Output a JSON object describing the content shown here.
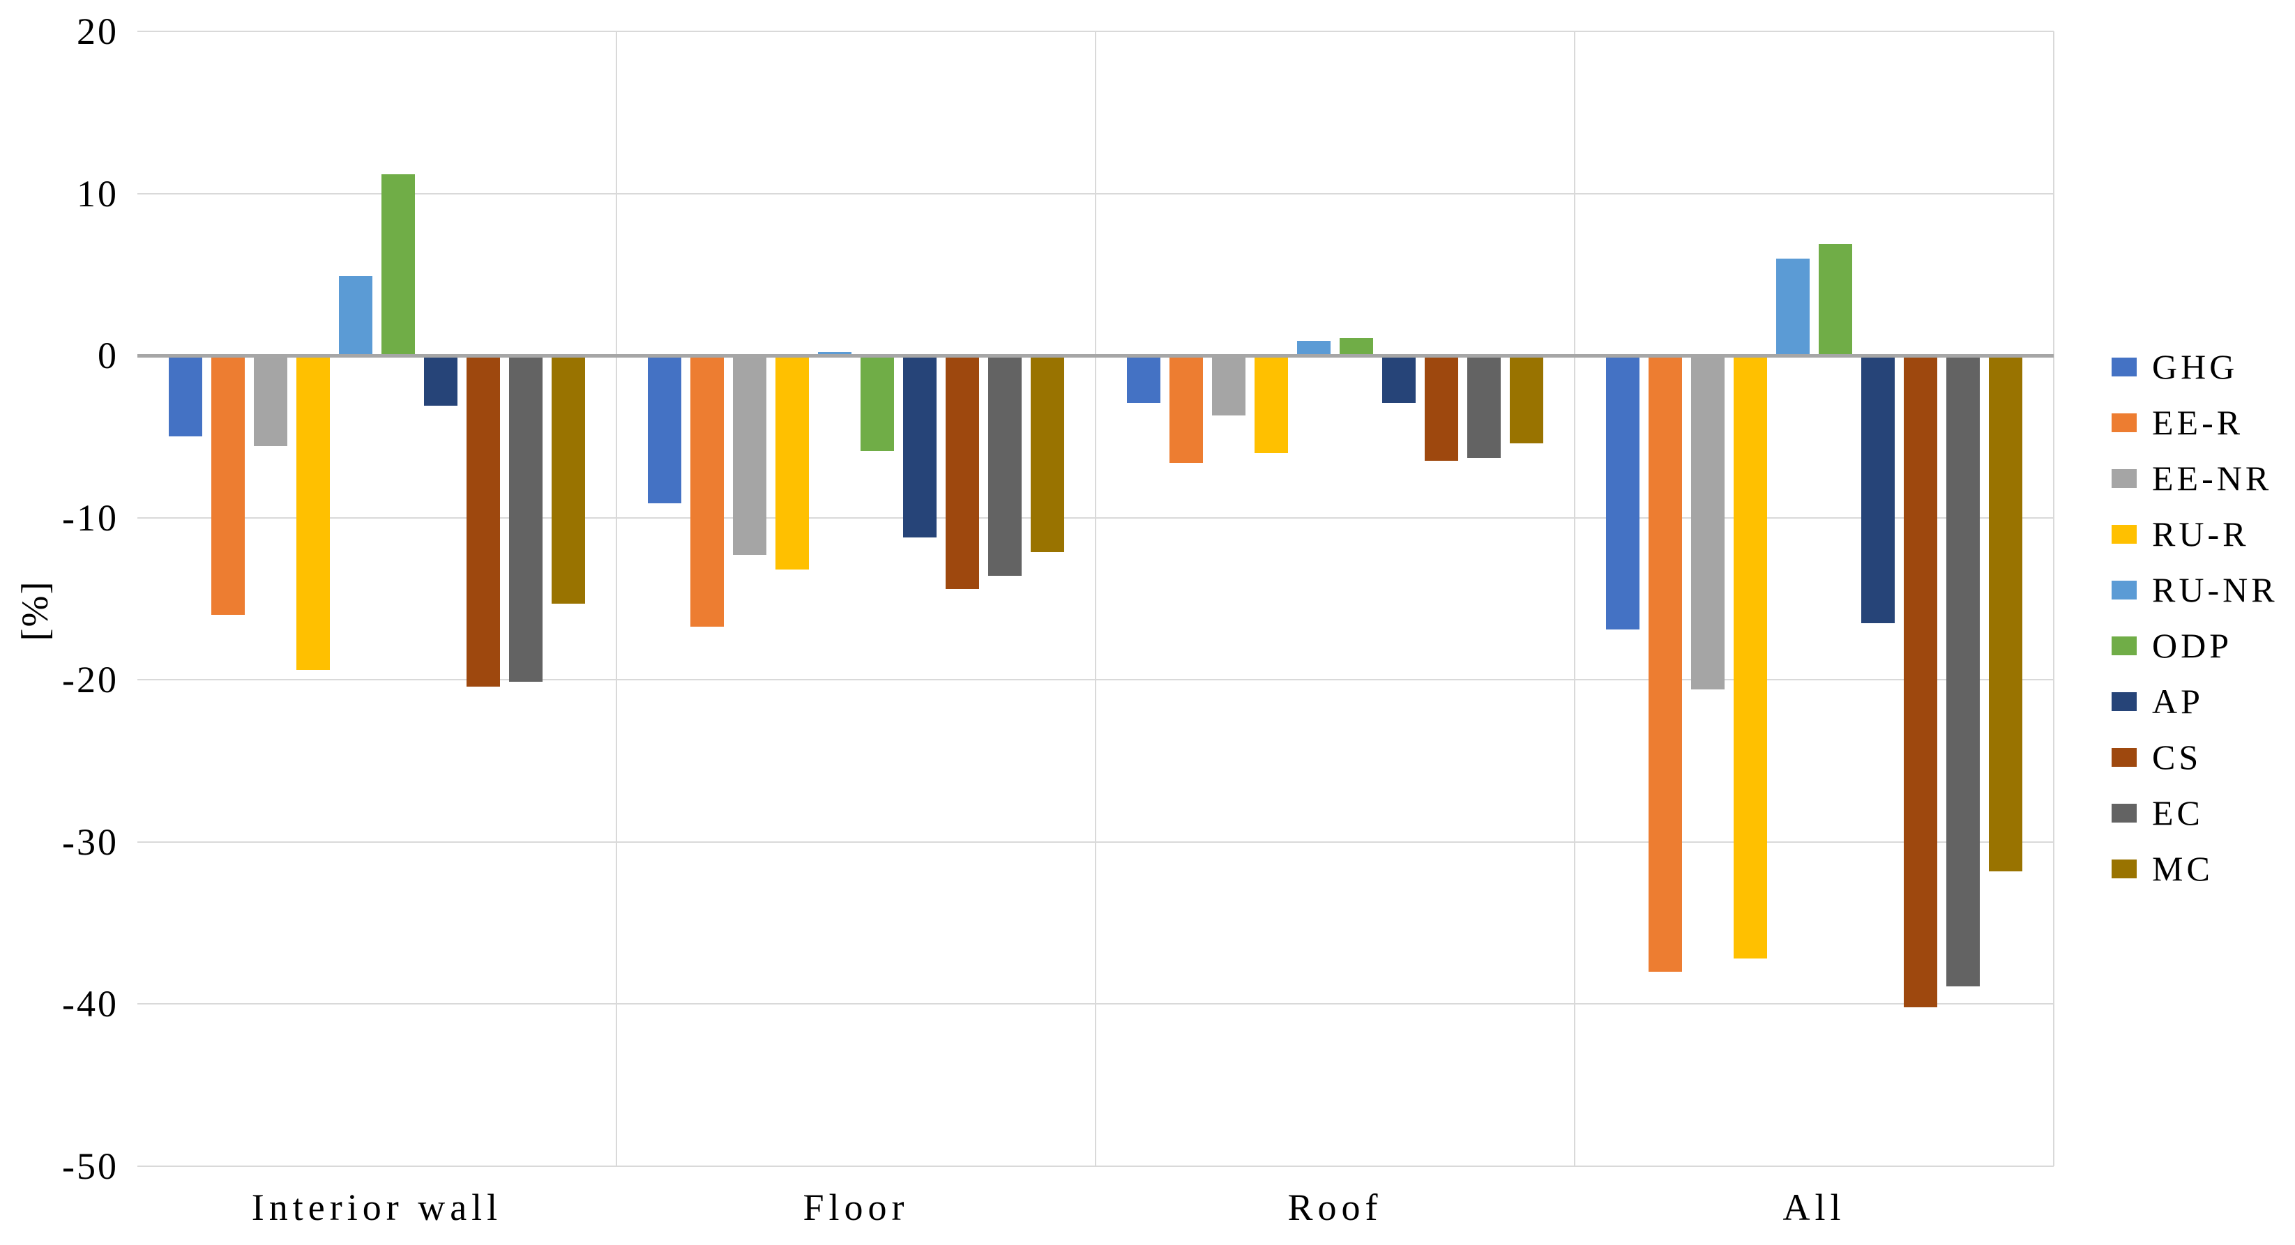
{
  "chart_data": {
    "type": "bar",
    "title": "",
    "ylabel": "[%]",
    "xlabel": "",
    "ylim": [
      -50,
      20
    ],
    "ytick_step": 10,
    "ytick_labels": [
      "20",
      "10",
      "0",
      "-10",
      "-20",
      "-30",
      "-40",
      "-50"
    ],
    "grid": "horizontal-and-category-separators",
    "legend_position": "right",
    "categories": [
      "Interior wall",
      "Floor",
      "Roof",
      "All"
    ],
    "series": [
      {
        "name": "GHG",
        "color": "#4472C4",
        "values": [
          -5.0,
          -9.1,
          -2.9,
          -16.9
        ]
      },
      {
        "name": "EE-R",
        "color": "#ED7D31",
        "values": [
          -16.0,
          -16.7,
          -6.6,
          -38.0
        ]
      },
      {
        "name": "EE-NR",
        "color": "#A5A5A5",
        "values": [
          -5.6,
          -12.3,
          -3.7,
          -20.6
        ]
      },
      {
        "name": "RU-R",
        "color": "#FFC000",
        "values": [
          -19.4,
          -13.2,
          -6.0,
          -37.2
        ]
      },
      {
        "name": "RU-NR",
        "color": "#5B9BD5",
        "values": [
          4.9,
          0.2,
          0.9,
          6.0
        ]
      },
      {
        "name": "ODP",
        "color": "#70AD47",
        "values": [
          11.2,
          -5.9,
          1.1,
          6.9
        ]
      },
      {
        "name": "AP",
        "color": "#264478",
        "values": [
          -3.1,
          -11.2,
          -2.9,
          -16.5
        ]
      },
      {
        "name": "CS",
        "color": "#9E480E",
        "values": [
          -20.4,
          -14.4,
          -6.5,
          -40.2
        ]
      },
      {
        "name": "EC",
        "color": "#636363",
        "values": [
          -20.1,
          -13.6,
          -6.3,
          -38.9
        ]
      },
      {
        "name": "MC",
        "color": "#997300",
        "values": [
          -15.3,
          -12.1,
          -5.4,
          -31.8
        ]
      }
    ],
    "colors": {
      "gridline": "#D9D9D9",
      "zero_axis": "#A6A6A6",
      "text": "#000000"
    }
  }
}
